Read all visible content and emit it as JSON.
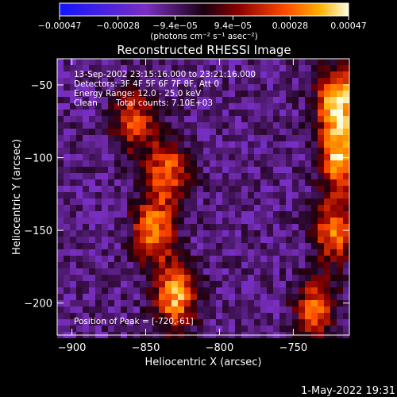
{
  "chart_data": {
    "type": "heatmap",
    "title": "Reconstructed RHESSI Image",
    "xlabel": "Heliocentric X (arcsec)",
    "ylabel": "Heliocentric Y (arcsec)",
    "xlim": [
      -910,
      -712
    ],
    "ylim": [
      -222,
      -32
    ],
    "x_ticks": [
      -900,
      -850,
      -800,
      -750
    ],
    "y_ticks": [
      -50,
      -100,
      -150,
      -200
    ],
    "x_tick_labels": [
      "−900",
      "−850",
      "−800",
      "−750"
    ],
    "y_tick_labels": [
      "−50",
      "−100",
      "−150",
      "−200"
    ],
    "colorbar": {
      "range": [
        -0.00047,
        0.00047
      ],
      "ticks": [
        -0.00047,
        -0.00028,
        -9.4e-05,
        9.4e-05,
        0.00028,
        0.00047
      ],
      "tick_labels": [
        "−0.00047",
        "−0.00028",
        "−9.4e−05",
        "9.4e−05",
        "0.00028",
        "0.00047"
      ],
      "units_label": "(photons cm⁻² s⁻¹ asec⁻²)"
    },
    "annotations": {
      "time_range": "13-Sep-2002 23:15:16.000 to 23:21:16.000",
      "detectors": "Detectors: 3F 4F 5F 6F 7F 8F, Att 0",
      "energy_range": "Energy Range: 12.0 - 25.0 keV",
      "clean_label": "Clean",
      "total_counts": "Total counts: 7.10E+03",
      "peak_position": "Position of Peak = [-720,-61]"
    },
    "sources": [
      {
        "x": -830,
        "y": -195,
        "value": 0.00038
      },
      {
        "x": -845,
        "y": -150,
        "value": 0.00032
      },
      {
        "x": -835,
        "y": -110,
        "value": 0.00028
      },
      {
        "x": -858,
        "y": -75,
        "value": 0.00024
      },
      {
        "x": -720,
        "y": -61,
        "value": 0.00047
      },
      {
        "x": -718,
        "y": -100,
        "value": 0.0004
      },
      {
        "x": -722,
        "y": -150,
        "value": 0.0003
      },
      {
        "x": -735,
        "y": -205,
        "value": 0.00026
      }
    ],
    "footer_timestamp": "1-May-2022 19:31"
  }
}
